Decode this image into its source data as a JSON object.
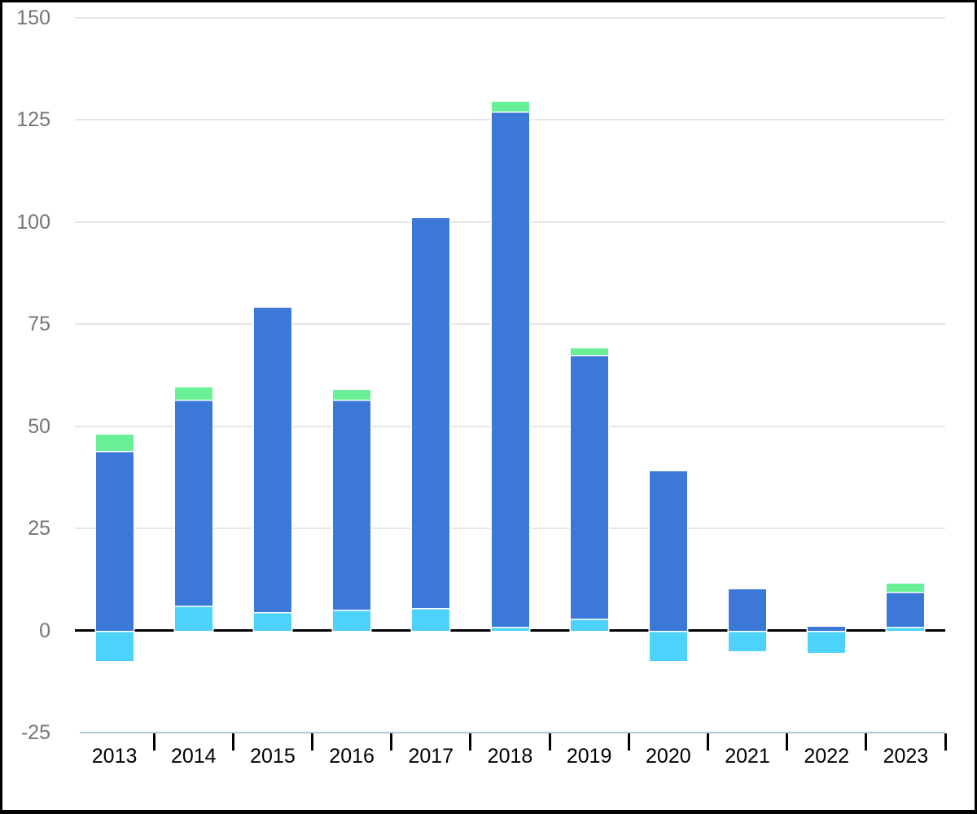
{
  "chart_data": {
    "type": "bar",
    "stacked": true,
    "title": "",
    "xlabel": "",
    "ylabel": "",
    "legend": "none",
    "grid": true,
    "categories": [
      "2013",
      "2014",
      "2015",
      "2016",
      "2017",
      "2018",
      "2019",
      "2020",
      "2021",
      "2022",
      "2023"
    ],
    "series": [
      {
        "name": "cyan",
        "color": "#4DD2FA",
        "values": [
          -7.5,
          6,
          4.5,
          5,
          5.5,
          1,
          3,
          -7.5,
          -5,
          -5.5,
          1
        ]
      },
      {
        "name": "blue",
        "color": "#3C78D8",
        "values": [
          44,
          50.5,
          74.5,
          51.5,
          95.5,
          126,
          64.5,
          39,
          10,
          1,
          8.5
        ]
      },
      {
        "name": "green",
        "color": "#69F096",
        "values": [
          4,
          3,
          0,
          2.5,
          0,
          2.5,
          1.5,
          0,
          0,
          0,
          2
        ]
      }
    ],
    "ylim": [
      -25,
      150
    ],
    "yticks": [
      -25,
      0,
      25,
      50,
      75,
      100,
      125,
      150
    ],
    "ytick_labels": [
      "-25",
      "0",
      "25",
      "50",
      "75",
      "100",
      "125",
      "150"
    ]
  },
  "style": {
    "background": "#FFFFFF",
    "frame_border_color": "#000000",
    "gridline_color": "#E6E6E6",
    "zero_line_color": "#000000",
    "x_axis_line_color": "#AFC5DF",
    "x_tick_color": "#000000",
    "y_label_color": "#757575",
    "x_label_color": "#000000"
  }
}
